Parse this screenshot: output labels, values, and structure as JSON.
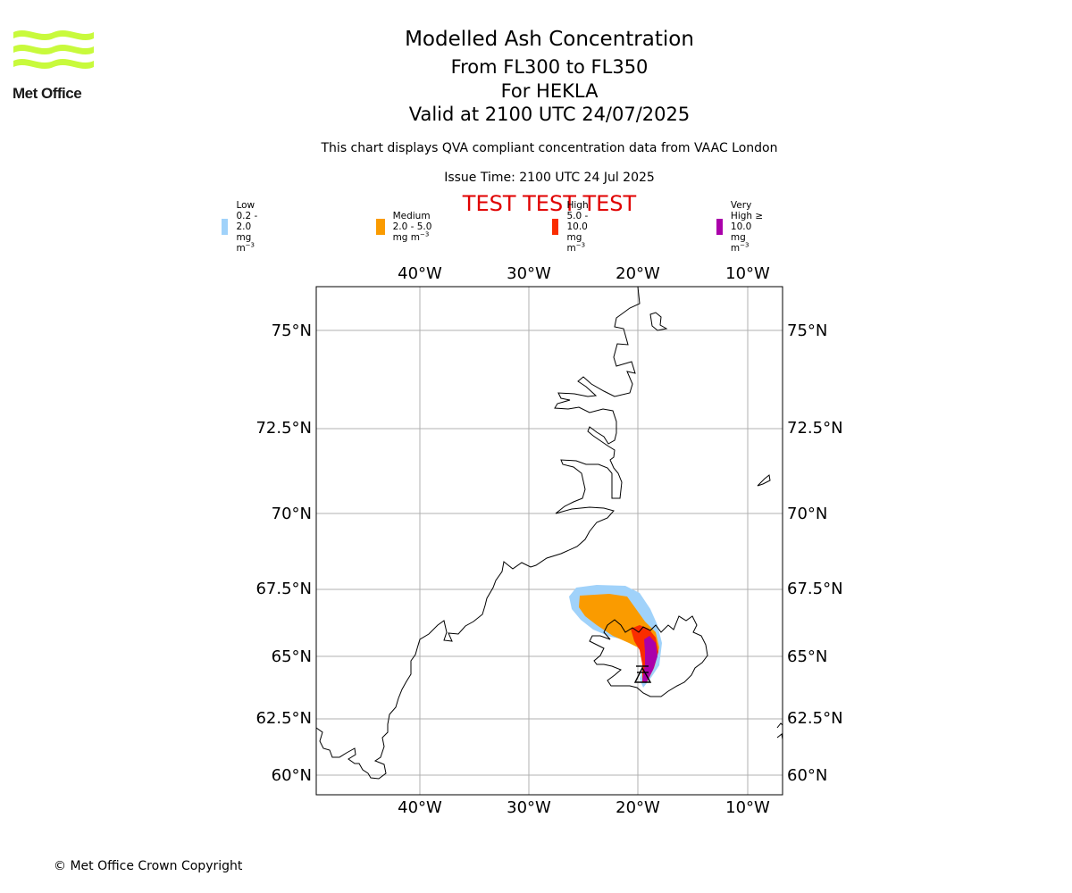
{
  "header": {
    "title": "Modelled Ash Concentration",
    "levels": "From FL300 to FL350",
    "volcano": "For HEKLA",
    "valid": "Valid at 2100 UTC 24/07/2025",
    "description": "This chart displays QVA compliant concentration data from VAAC London",
    "issue_time": "Issue Time: 2100 UTC 24 Jul 2025",
    "test_banner": "TEST TEST TEST"
  },
  "logo": {
    "text": "Met Office",
    "color": "#c8fa3c"
  },
  "legend": [
    {
      "label": "Low 0.2 - 2.0 mg m",
      "color": "#a0d2fa"
    },
    {
      "label": "Medium 2.0 - 5.0 mg m",
      "color": "#fa9b00"
    },
    {
      "label": "High 5.0 - 10.0 mg m",
      "color": "#fa2d00"
    },
    {
      "label": "Very High  ≥  10.0 mg m",
      "color": "#aa00aa"
    }
  ],
  "legend_unit_exponent": "−3",
  "map": {
    "lon_labels": [
      "40°W",
      "30°W",
      "20°W",
      "10°W"
    ],
    "lat_labels": [
      "75°N",
      "72.5°N",
      "70°N",
      "67.5°N",
      "65°N",
      "62.5°N",
      "60°N"
    ],
    "volcano_icon": "volcano-triangle-icon"
  },
  "footer": {
    "copyright": "© Met Office Crown Copyright"
  }
}
